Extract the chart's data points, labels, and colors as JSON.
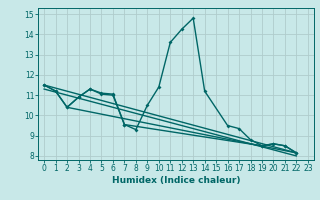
{
  "background_color": "#c8e8e8",
  "grid_color": "#b0cccc",
  "line_color": "#006666",
  "xlabel": "Humidex (Indice chaleur)",
  "xlim": [
    -0.5,
    23.5
  ],
  "ylim": [
    7.8,
    15.3
  ],
  "yticks": [
    8,
    9,
    10,
    11,
    12,
    13,
    14,
    15
  ],
  "xticks": [
    0,
    1,
    2,
    3,
    4,
    5,
    6,
    7,
    8,
    9,
    10,
    11,
    12,
    13,
    14,
    15,
    16,
    17,
    18,
    19,
    20,
    21,
    22,
    23
  ],
  "series1_x": [
    0,
    1,
    2,
    3,
    4,
    5,
    6,
    7,
    8,
    9,
    10,
    11,
    12,
    13,
    14,
    16,
    17,
    18,
    19,
    20,
    21,
    22
  ],
  "series1_y": [
    11.5,
    11.2,
    10.4,
    10.9,
    11.3,
    11.1,
    11.05,
    9.55,
    9.3,
    10.5,
    11.4,
    13.6,
    14.25,
    14.8,
    11.2,
    9.5,
    9.35,
    8.8,
    8.5,
    8.6,
    8.5,
    8.15
  ],
  "series2_x": [
    0,
    1,
    2,
    3,
    4,
    5,
    6,
    7,
    19,
    20,
    21,
    22
  ],
  "series2_y": [
    11.5,
    11.2,
    10.4,
    10.9,
    11.3,
    11.05,
    11.0,
    9.55,
    8.5,
    8.6,
    8.5,
    8.15
  ],
  "trend1_x": [
    0,
    22
  ],
  "trend1_y": [
    11.5,
    8.15
  ],
  "trend2_x": [
    0,
    22
  ],
  "trend2_y": [
    11.3,
    8.0
  ],
  "trend3_x": [
    2,
    22
  ],
  "trend3_y": [
    10.4,
    8.15
  ],
  "lw": 1.0,
  "ms": 2.0
}
